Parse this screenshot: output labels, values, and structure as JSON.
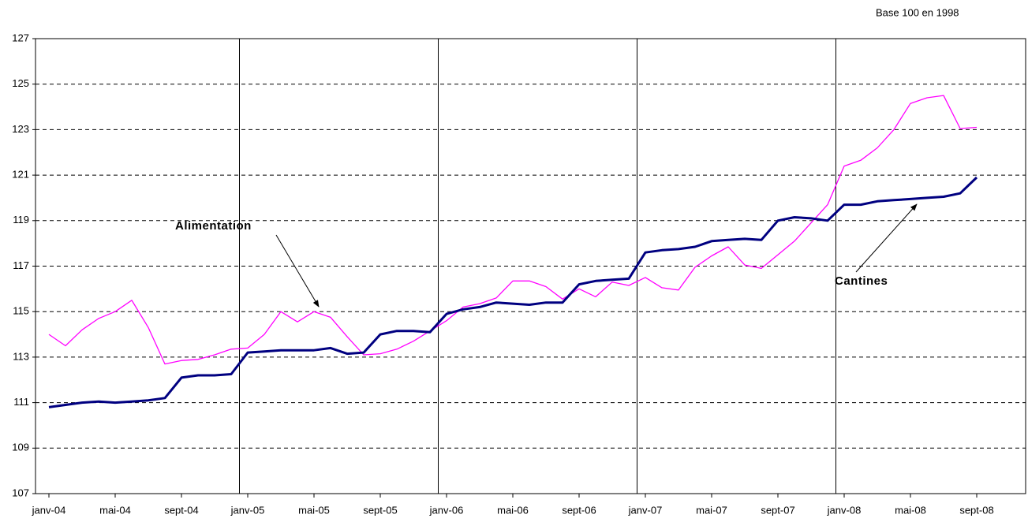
{
  "chart_data": {
    "type": "line",
    "subtitle": "Base 100 en 1998",
    "categories": [
      "janv-04",
      null,
      null,
      null,
      "mai-04",
      null,
      null,
      null,
      "sept-04",
      null,
      null,
      null,
      "janv-05",
      null,
      null,
      null,
      "mai-05",
      null,
      null,
      null,
      "sept-05",
      null,
      null,
      null,
      "janv-06",
      null,
      null,
      null,
      "mai-06",
      null,
      null,
      null,
      "sept-06",
      null,
      null,
      null,
      "janv-07",
      null,
      null,
      null,
      "mai-07",
      null,
      null,
      null,
      "sept-07",
      null,
      null,
      null,
      "janv-08",
      null,
      null,
      null,
      "mai-08",
      null,
      null,
      null,
      "sept-08"
    ],
    "series": [
      {
        "name": "Alimentation",
        "color": "#ff00ff",
        "width": 1.3,
        "values": [
          114.0,
          113.5,
          114.2,
          114.7,
          115.0,
          115.5,
          114.3,
          112.7,
          112.85,
          112.9,
          113.1,
          113.35,
          113.4,
          114.0,
          115.0,
          114.55,
          115.0,
          114.75,
          113.9,
          113.1,
          113.15,
          113.35,
          113.7,
          114.15,
          114.6,
          115.2,
          115.35,
          115.6,
          116.35,
          116.35,
          116.1,
          115.55,
          116.0,
          115.65,
          116.3,
          116.15,
          116.5,
          116.05,
          115.95,
          116.95,
          117.45,
          117.85,
          117.05,
          116.9,
          117.5,
          118.1,
          118.9,
          119.7,
          121.4,
          121.65,
          122.2,
          123.0,
          124.15,
          124.4,
          124.5,
          123.05,
          123.1
        ]
      },
      {
        "name": "Cantines",
        "color": "#000080",
        "width": 3,
        "values": [
          110.8,
          110.9,
          111.0,
          111.05,
          111.0,
          111.05,
          111.1,
          111.2,
          112.1,
          112.2,
          112.2,
          112.25,
          113.2,
          113.25,
          113.3,
          113.3,
          113.3,
          113.4,
          113.15,
          113.2,
          114.0,
          114.15,
          114.15,
          114.1,
          114.9,
          115.1,
          115.2,
          115.4,
          115.35,
          115.3,
          115.4,
          115.4,
          116.2,
          116.35,
          116.4,
          116.45,
          117.6,
          117.7,
          117.75,
          117.85,
          118.1,
          118.15,
          118.2,
          118.15,
          119.0,
          119.15,
          119.1,
          119.0,
          119.7,
          119.7,
          119.85,
          119.9,
          119.95,
          120.0,
          120.05,
          120.2,
          120.9
        ]
      }
    ],
    "ylim": [
      107,
      127
    ],
    "yticks": [
      107,
      109,
      111,
      113,
      115,
      117,
      119,
      121,
      123,
      125,
      127
    ],
    "grid": true,
    "legend": "annotations"
  }
}
